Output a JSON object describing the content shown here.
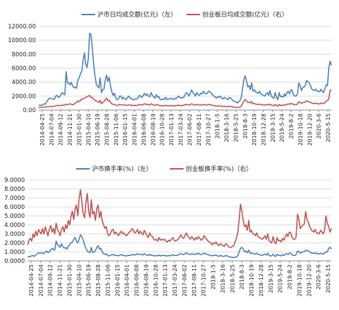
{
  "chart_data": [
    {
      "type": "line",
      "ylim": [
        0,
        12000
      ],
      "yticks": [
        "0.00",
        "2000.00",
        "4000.00",
        "6000.00",
        "8000.00",
        "10000.00",
        "12000.00"
      ],
      "x_tick_labels": [
        "2014-04-25",
        "2014-07-04",
        "2014-09-12",
        "2014-11-21",
        "2015-01-30",
        "2015-04-10",
        "2015-06-19",
        "2015-08-28",
        "2015-11-06",
        "2016-01-15",
        "2016-04-01",
        "2016-06-08",
        "2016-08-19",
        "2016-10-28",
        "2017-01-13",
        "2017-03-24",
        "2017-06-02",
        "2017-08-11",
        "2017-10-27",
        "2018-1-5",
        "2018-3-16",
        "2018-5-25",
        "2018-8-3",
        "2018-10-19",
        "2018-12-28",
        "2019-3-15",
        "2019-5-24",
        "2019-8-2",
        "2019-10-18",
        "2019-12-20",
        "2020-3-6",
        "2020-5-15"
      ],
      "legend_position": "top",
      "grid": true,
      "series": [
        {
          "name": "沪市日均成交额(亿元)（左）",
          "color": "#4a7ebb",
          "values": [
            650,
            700,
            650,
            750,
            900,
            800,
            1150,
            1400,
            1700,
            1650,
            1650,
            1600,
            1500,
            2000,
            2100,
            1800,
            1900,
            2200,
            2500,
            2300,
            2200,
            5500,
            3900,
            3900,
            3600,
            4000,
            3400,
            3200,
            3300,
            3100,
            4300,
            4600,
            5200,
            5600,
            7100,
            8200,
            6600,
            6100,
            7400,
            11000,
            10800,
            9000,
            6700,
            5000,
            3800,
            3400,
            3200,
            4600,
            2500,
            2900,
            3000,
            4300,
            5000,
            4100,
            4700,
            3400,
            2600,
            2100,
            2400,
            1700,
            1500,
            1600,
            2000,
            2000,
            1600,
            1800,
            1600,
            1500,
            1800,
            2000,
            1700,
            1700,
            1500,
            1500,
            1600,
            1600,
            1700,
            2100,
            2000,
            1800,
            2100,
            2400,
            2100,
            2300,
            2000,
            1900,
            2500,
            2100,
            1900,
            1700,
            2200,
            1800,
            1900,
            1500,
            1500,
            1600,
            1500,
            1800,
            1500,
            1600,
            1600,
            1700,
            1600,
            1500,
            1700,
            1600,
            1800,
            2000,
            1800,
            1700,
            1800,
            1800,
            2200,
            2500,
            2300,
            2000,
            2400,
            2900,
            2500,
            2300,
            2000,
            2500,
            2200,
            2100,
            2400,
            2300,
            2700,
            2400,
            2300,
            2400,
            2700,
            2600,
            2400,
            2200,
            2000,
            1900,
            1700,
            1900,
            1800,
            2000,
            1700,
            1600,
            1800,
            1700,
            1600,
            1500,
            1800,
            1700,
            1500,
            1300,
            1200,
            1200,
            1000,
            1200,
            1300,
            1800,
            3000,
            4400,
            4900,
            4200,
            3300,
            3500,
            2900,
            3900,
            2700,
            2900,
            2600,
            2500,
            2400,
            2700,
            2300,
            2200,
            2100,
            2000,
            2300,
            2500,
            2100,
            2800,
            2000,
            1800,
            1700,
            2500,
            1800,
            1500,
            2500,
            1900,
            2000,
            1800,
            2300,
            2000,
            2500,
            2700,
            2300,
            2900,
            2800,
            2200,
            2000,
            2000,
            2300,
            3900,
            3500,
            2800,
            3200,
            3300,
            3500,
            4200,
            4100,
            3900,
            3500,
            3000,
            2900,
            2800,
            3000,
            2700,
            2700,
            2600,
            3000,
            2700,
            2500,
            3000,
            3600,
            3500,
            6000,
            7000,
            6400
          ]
        },
        {
          "name": "创业板日均成交额(亿元)（右）",
          "color": "#c0504d",
          "values": [
            350,
            400,
            400,
            420,
            450,
            420,
            450,
            500,
            500,
            500,
            520,
            500,
            550,
            600,
            650,
            650,
            620,
            650,
            680,
            700,
            720,
            800,
            780,
            820,
            900,
            800,
            750,
            800,
            1000,
            1100,
            1300,
            1200,
            1400,
            1600,
            1600,
            1700,
            1800,
            1900,
            2000,
            2100,
            1800,
            1800,
            1600,
            1400,
            1300,
            1200,
            1100,
            1400,
            900,
            1100,
            1200,
            1500,
            1700,
            1300,
            1400,
            1100,
            900,
            800,
            800,
            700,
            650,
            700,
            800,
            750,
            700,
            750,
            700,
            650,
            700,
            750,
            700,
            680,
            650,
            620,
            680,
            650,
            700,
            800,
            750,
            700,
            800,
            900,
            800,
            850,
            750,
            700,
            900,
            800,
            700,
            650,
            800,
            700,
            700,
            600,
            600,
            620,
            600,
            700,
            600,
            620,
            600,
            650,
            600,
            580,
            620,
            600,
            650,
            700,
            650,
            620,
            650,
            680,
            750,
            800,
            750,
            700,
            800,
            900,
            800,
            750,
            700,
            800,
            750,
            700,
            750,
            700,
            800,
            750,
            700,
            720,
            800,
            780,
            720,
            680,
            620,
            600,
            550,
            580,
            560,
            600,
            520,
            500,
            550,
            520,
            500,
            480,
            550,
            520,
            480,
            420,
            400,
            380,
            350,
            400,
            420,
            550,
            900,
            1300,
            1500,
            1300,
            1100,
            1150,
            1000,
            1200,
            900,
            950,
            850,
            820,
            800,
            850,
            780,
            750,
            720,
            700,
            750,
            800,
            700,
            850,
            700,
            650,
            620,
            800,
            650,
            550,
            800,
            650,
            700,
            650,
            750,
            700,
            800,
            900,
            800,
            950,
            900,
            800,
            750,
            750,
            850,
            1200,
            1100,
            950,
            1050,
            1100,
            1150,
            1300,
            1250,
            1200,
            1100,
            1000,
            950,
            900,
            1000,
            900,
            900,
            850,
            1000,
            950,
            900,
            1050,
            1300,
            1350,
            1600,
            2800,
            2900
          ]
        }
      ]
    },
    {
      "type": "line",
      "ylim": [
        0,
        9
      ],
      "yticks": [
        "0.0000",
        "1.0000",
        "2.0000",
        "3.0000",
        "4.0000",
        "5.0000",
        "6.0000",
        "7.0000",
        "8.0000",
        "9.0000"
      ],
      "x_tick_labels": [
        "2014-04-25",
        "2014-07-04",
        "2014-09-12",
        "2014-11-21",
        "2015-01-30",
        "2015-04-10",
        "2015-06-19",
        "2015-08-28",
        "2015-11-06",
        "2016-01-15",
        "2016-04-01",
        "2016-06-08",
        "2016-08-19",
        "2016-10-28",
        "2017-01-13",
        "2017-03-24",
        "2017-06-02",
        "2017-08-11",
        "2017-10-27",
        "2018-1-5",
        "2018-3-16",
        "2018-5-25",
        "2018-8-3",
        "2018-10-19",
        "2018-12-28",
        "2019-3-15",
        "2019-5-24",
        "2019-8-2",
        "2019-10-18",
        "2019-12-20",
        "2020-3-6",
        "2020-5-15"
      ],
      "legend_position": "top",
      "grid": true,
      "series": [
        {
          "name": "沪市换手率(%)（左）",
          "color": "#4a7ebb",
          "values": [
            0.5,
            0.45,
            0.5,
            0.55,
            0.6,
            0.5,
            0.65,
            0.8,
            0.9,
            0.85,
            0.9,
            0.85,
            0.8,
            1.0,
            1.1,
            0.9,
            1.0,
            1.2,
            1.4,
            1.3,
            1.2,
            2.2,
            1.8,
            1.7,
            1.5,
            1.9,
            1.6,
            1.4,
            1.5,
            1.3,
            1.6,
            1.8,
            2.0,
            2.1,
            2.4,
            2.6,
            2.2,
            2.0,
            2.4,
            2.9,
            2.7,
            2.3,
            1.8,
            1.4,
            1.1,
            1.0,
            0.9,
            1.5,
            0.9,
            1.0,
            1.1,
            1.5,
            1.7,
            1.3,
            1.4,
            1.0,
            0.8,
            0.7,
            0.8,
            0.6,
            0.55,
            0.6,
            0.7,
            0.7,
            0.6,
            0.65,
            0.6,
            0.55,
            0.65,
            0.7,
            0.6,
            0.6,
            0.55,
            0.55,
            0.6,
            0.6,
            0.6,
            0.7,
            0.7,
            0.65,
            0.7,
            0.8,
            0.7,
            0.75,
            0.7,
            0.65,
            0.8,
            0.7,
            0.65,
            0.6,
            0.75,
            0.6,
            0.65,
            0.55,
            0.55,
            0.6,
            0.55,
            0.65,
            0.55,
            0.6,
            0.6,
            0.6,
            0.55,
            0.55,
            0.6,
            0.55,
            0.6,
            0.7,
            0.6,
            0.6,
            0.6,
            0.65,
            0.75,
            0.8,
            0.75,
            0.7,
            0.8,
            0.9,
            0.8,
            0.75,
            0.7,
            0.8,
            0.75,
            0.7,
            0.8,
            0.75,
            0.85,
            0.75,
            0.7,
            0.75,
            0.85,
            0.8,
            0.75,
            0.7,
            0.65,
            0.6,
            0.55,
            0.6,
            0.6,
            0.65,
            0.55,
            0.5,
            0.6,
            0.55,
            0.5,
            0.5,
            0.6,
            0.55,
            0.5,
            0.45,
            0.4,
            0.4,
            0.35,
            0.4,
            0.45,
            0.6,
            1.0,
            1.4,
            1.5,
            1.3,
            1.0,
            1.1,
            0.9,
            1.2,
            0.85,
            0.9,
            0.8,
            0.8,
            0.75,
            0.85,
            0.7,
            0.7,
            0.65,
            0.6,
            0.7,
            0.75,
            0.65,
            0.85,
            0.6,
            0.55,
            0.55,
            0.75,
            0.55,
            0.5,
            0.75,
            0.6,
            0.6,
            0.55,
            0.7,
            0.6,
            0.75,
            0.8,
            0.7,
            0.85,
            0.85,
            0.65,
            0.6,
            0.6,
            0.7,
            1.1,
            1.0,
            0.85,
            0.95,
            1.0,
            1.0,
            1.2,
            1.15,
            1.1,
            1.0,
            0.9,
            0.85,
            0.8,
            0.9,
            0.8,
            0.8,
            0.75,
            0.85,
            0.8,
            0.75,
            0.85,
            1.0,
            1.0,
            1.4,
            1.5,
            1.3
          ]
        },
        {
          "name": "创业板换手率(%)（右）",
          "color": "#c0504d",
          "values": [
            1.8,
            2.3,
            2.5,
            2.2,
            3.0,
            2.6,
            3.3,
            2.8,
            3.5,
            3.2,
            3.0,
            3.6,
            3.0,
            3.8,
            3.3,
            2.8,
            3.5,
            3.9,
            3.2,
            3.6,
            3.0,
            4.2,
            3.5,
            3.2,
            2.8,
            3.5,
            3.8,
            3.2,
            4.0,
            3.6,
            4.5,
            4.0,
            5.0,
            5.5,
            4.6,
            5.8,
            6.2,
            5.0,
            7.0,
            7.9,
            6.5,
            5.2,
            4.8,
            6.5,
            7.5,
            5.5,
            4.8,
            6.8,
            5.2,
            5.5,
            4.5,
            5.8,
            6.2,
            4.8,
            5.5,
            4.5,
            4.0,
            3.6,
            3.8,
            3.0,
            2.8,
            3.0,
            3.4,
            3.5,
            3.0,
            3.2,
            3.0,
            2.8,
            3.1,
            3.3,
            3.0,
            3.1,
            2.9,
            2.8,
            3.0,
            3.2,
            3.3,
            3.6,
            3.4,
            3.1,
            3.2,
            3.5,
            3.0,
            3.3,
            3.1,
            2.9,
            3.4,
            3.1,
            2.8,
            2.6,
            3.1,
            2.8,
            2.7,
            2.4,
            2.3,
            2.4,
            2.2,
            2.6,
            2.3,
            2.4,
            2.3,
            2.4,
            2.2,
            2.1,
            2.3,
            2.2,
            2.4,
            2.6,
            2.3,
            2.2,
            2.3,
            2.4,
            2.6,
            2.9,
            2.6,
            2.5,
            2.8,
            3.1,
            2.8,
            2.6,
            2.4,
            2.7,
            2.5,
            2.3,
            2.6,
            2.4,
            2.7,
            2.5,
            2.3,
            2.4,
            2.8,
            2.6,
            2.4,
            2.2,
            2.1,
            2.0,
            1.8,
            2.0,
            1.9,
            2.1,
            1.8,
            1.7,
            1.9,
            1.8,
            1.7,
            1.6,
            1.9,
            1.8,
            1.6,
            1.5,
            1.5,
            1.6,
            1.7,
            2.1,
            2.5,
            3.2,
            4.6,
            6.3,
            5.5,
            4.5,
            3.8,
            4.0,
            3.4,
            4.5,
            3.2,
            3.4,
            3.0,
            3.0,
            2.8,
            3.1,
            2.7,
            2.6,
            2.5,
            2.4,
            2.6,
            2.8,
            2.4,
            3.0,
            2.3,
            2.1,
            2.0,
            2.7,
            2.1,
            1.9,
            2.6,
            2.2,
            2.3,
            2.1,
            2.5,
            2.3,
            2.7,
            3.0,
            2.7,
            3.2,
            3.1,
            2.6,
            2.4,
            2.4,
            2.7,
            5.2,
            4.6,
            3.6,
            3.8,
            4.0,
            4.1,
            5.5,
            4.6,
            4.3,
            3.8,
            3.5,
            3.3,
            3.2,
            3.5,
            3.1,
            3.1,
            3.0,
            3.4,
            3.2,
            3.0,
            3.4,
            5.0,
            4.2,
            3.8,
            3.2,
            3.6
          ]
        }
      ]
    }
  ]
}
